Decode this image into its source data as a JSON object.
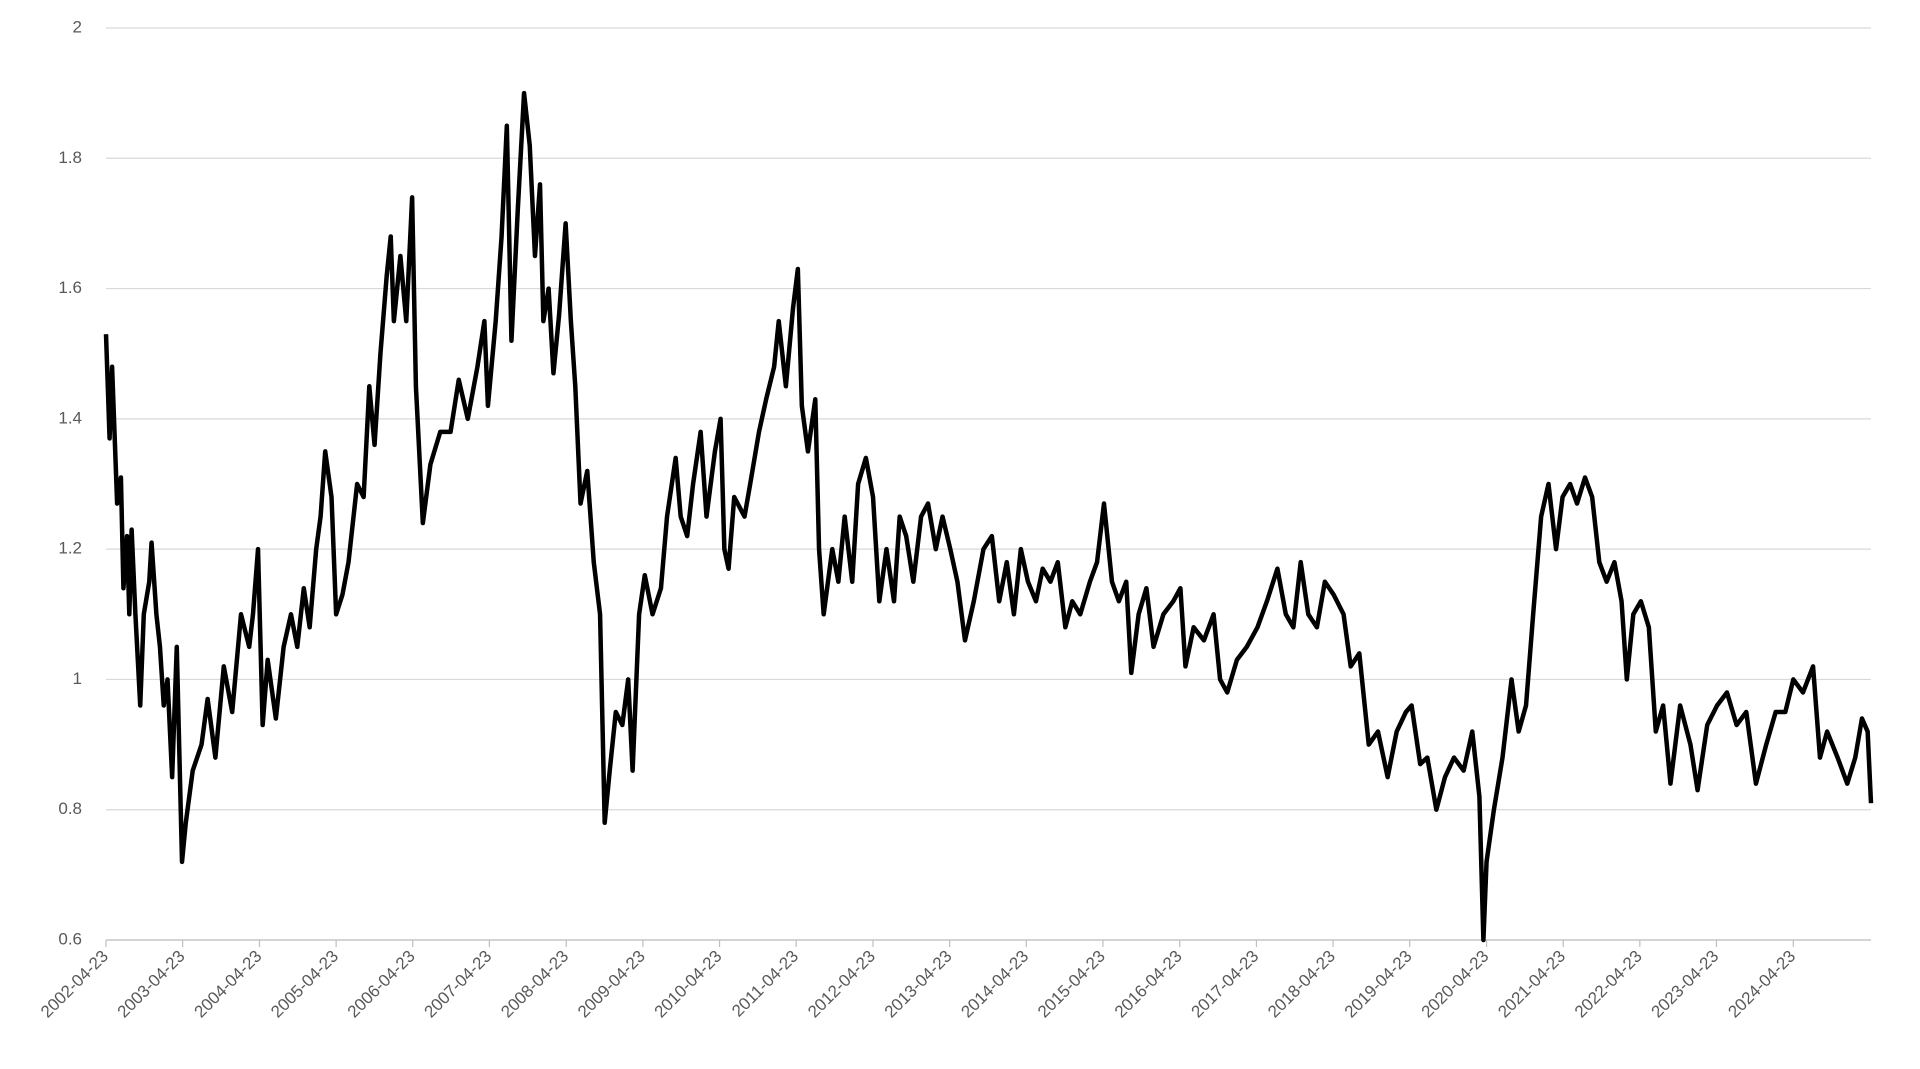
{
  "chart_data": {
    "type": "line",
    "color": "#000000",
    "grid": true,
    "x": [
      "2002-04-23",
      "2002-05-10",
      "2002-05-22",
      "2002-06-15",
      "2002-07-03",
      "2002-07-15",
      "2002-08-01",
      "2002-08-12",
      "2002-08-23",
      "2002-09-10",
      "2002-10-03",
      "2002-10-20",
      "2002-11-15",
      "2002-11-26",
      "2002-12-19",
      "2003-01-05",
      "2003-01-23",
      "2003-02-10",
      "2003-03-04",
      "2003-03-26",
      "2003-04-20",
      "2003-05-08",
      "2003-06-10",
      "2003-07-22",
      "2003-08-20",
      "2003-09-26",
      "2003-11-05",
      "2003-12-15",
      "2004-01-26",
      "2004-03-05",
      "2004-03-23",
      "2004-04-16",
      "2004-05-08",
      "2004-06-01",
      "2004-07-10",
      "2004-08-16",
      "2004-09-20",
      "2004-10-20",
      "2004-11-20",
      "2004-12-18",
      "2005-01-18",
      "2005-02-08",
      "2005-03-02",
      "2005-04-01",
      "2005-04-23",
      "2005-05-23",
      "2005-06-21",
      "2005-08-01",
      "2005-09-01",
      "2005-09-28",
      "2005-10-23",
      "2005-11-20",
      "2005-12-20",
      "2006-01-08",
      "2006-01-23",
      "2006-02-23",
      "2006-03-23",
      "2006-04-20",
      "2006-05-08",
      "2006-06-10",
      "2006-07-16",
      "2006-09-01",
      "2006-10-20",
      "2006-11-28",
      "2007-01-10",
      "2007-02-25",
      "2007-03-30",
      "2007-04-16",
      "2007-05-23",
      "2007-06-20",
      "2007-07-15",
      "2007-08-06",
      "2007-09-05",
      "2007-10-05",
      "2007-11-01",
      "2007-11-26",
      "2007-12-20",
      "2008-01-05",
      "2008-01-30",
      "2008-02-22",
      "2008-03-20",
      "2008-04-20",
      "2008-05-15",
      "2008-06-05",
      "2008-06-30",
      "2008-08-01",
      "2008-09-01",
      "2008-10-01",
      "2008-10-23",
      "2008-11-16",
      "2008-12-15",
      "2009-01-15",
      "2009-02-12",
      "2009-03-05",
      "2009-04-05",
      "2009-05-02",
      "2009-06-08",
      "2009-07-18",
      "2009-08-16",
      "2009-09-26",
      "2009-10-20",
      "2009-11-20",
      "2009-12-18",
      "2010-01-23",
      "2010-02-20",
      "2010-04-01",
      "2010-04-28",
      "2010-05-16",
      "2010-06-05",
      "2010-07-02",
      "2010-08-20",
      "2010-09-16",
      "2010-10-28",
      "2010-12-01",
      "2011-01-08",
      "2011-01-30",
      "2011-03-05",
      "2011-04-08",
      "2011-05-01",
      "2011-05-20",
      "2011-06-18",
      "2011-07-23",
      "2011-08-10",
      "2011-09-01",
      "2011-10-12",
      "2011-11-10",
      "2011-12-10",
      "2012-01-15",
      "2012-02-12",
      "2012-03-20",
      "2012-04-23",
      "2012-05-23",
      "2012-06-26",
      "2012-08-01",
      "2012-08-28",
      "2012-09-28",
      "2012-11-01",
      "2012-12-08",
      "2013-01-10",
      "2013-02-16",
      "2013-03-20",
      "2013-04-26",
      "2013-05-30",
      "2013-07-05",
      "2013-08-16",
      "2013-10-01",
      "2013-11-10",
      "2013-12-15",
      "2014-01-20",
      "2014-02-23",
      "2014-03-28",
      "2014-05-01",
      "2014-06-08",
      "2014-07-10",
      "2014-08-16",
      "2014-09-20",
      "2014-10-26",
      "2014-11-28",
      "2015-01-05",
      "2015-02-20",
      "2015-03-26",
      "2015-04-28",
      "2015-06-05",
      "2015-07-08",
      "2015-08-12",
      "2015-09-05",
      "2015-10-10",
      "2015-11-16",
      "2015-12-20",
      "2016-02-05",
      "2016-03-23",
      "2016-04-26",
      "2016-05-20",
      "2016-06-28",
      "2016-08-16",
      "2016-10-01",
      "2016-11-01",
      "2016-12-05",
      "2017-01-20",
      "2017-03-08",
      "2017-04-28",
      "2017-06-12",
      "2017-08-01",
      "2017-09-10",
      "2017-10-16",
      "2017-11-20",
      "2017-12-26",
      "2018-02-05",
      "2018-03-15",
      "2018-04-26",
      "2018-06-12",
      "2018-07-16",
      "2018-08-26",
      "2018-10-10",
      "2018-11-23",
      "2019-01-08",
      "2019-02-20",
      "2019-04-05",
      "2019-05-02",
      "2019-06-12",
      "2019-07-16",
      "2019-08-28",
      "2019-10-08",
      "2019-11-20",
      "2020-01-05",
      "2020-02-15",
      "2020-03-20",
      "2020-04-08",
      "2020-04-23",
      "2020-05-28",
      "2020-07-08",
      "2020-08-20",
      "2020-09-23",
      "2020-10-28",
      "2020-12-01",
      "2021-01-08",
      "2021-02-12",
      "2021-03-20",
      "2021-04-20",
      "2021-05-26",
      "2021-06-28",
      "2021-08-05",
      "2021-09-08",
      "2021-10-12",
      "2021-11-16",
      "2021-12-23",
      "2022-01-26",
      "2022-02-20",
      "2022-03-23",
      "2022-04-28",
      "2022-06-05",
      "2022-07-08",
      "2022-08-12",
      "2022-09-16",
      "2022-11-01",
      "2022-12-20",
      "2023-01-23",
      "2023-03-10",
      "2023-04-26",
      "2023-06-12",
      "2023-07-28",
      "2023-09-12",
      "2023-10-28",
      "2023-12-16",
      "2024-01-30",
      "2024-03-16",
      "2024-04-23",
      "2024-06-08",
      "2024-07-26",
      "2024-08-28",
      "2024-10-01",
      "2024-11-20",
      "2025-01-05",
      "2025-02-12",
      "2025-03-16",
      "2025-04-12",
      "2025-04-28"
    ],
    "values": [
      1.53,
      1.37,
      1.48,
      1.27,
      1.31,
      1.14,
      1.22,
      1.1,
      1.23,
      1.1,
      0.96,
      1.1,
      1.15,
      1.21,
      1.1,
      1.05,
      0.96,
      1.0,
      0.85,
      1.05,
      0.72,
      0.78,
      0.86,
      0.9,
      0.97,
      0.88,
      1.02,
      0.95,
      1.1,
      1.05,
      1.1,
      1.2,
      0.93,
      1.03,
      0.94,
      1.05,
      1.1,
      1.05,
      1.14,
      1.08,
      1.2,
      1.25,
      1.35,
      1.28,
      1.1,
      1.13,
      1.18,
      1.3,
      1.28,
      1.45,
      1.36,
      1.5,
      1.62,
      1.68,
      1.55,
      1.65,
      1.55,
      1.74,
      1.45,
      1.24,
      1.33,
      1.38,
      1.38,
      1.46,
      1.4,
      1.48,
      1.55,
      1.42,
      1.55,
      1.68,
      1.85,
      1.52,
      1.72,
      1.9,
      1.82,
      1.65,
      1.76,
      1.55,
      1.6,
      1.47,
      1.56,
      1.7,
      1.55,
      1.45,
      1.27,
      1.32,
      1.18,
      1.1,
      0.78,
      0.86,
      0.95,
      0.93,
      1.0,
      0.86,
      1.1,
      1.16,
      1.1,
      1.14,
      1.25,
      1.34,
      1.25,
      1.22,
      1.3,
      1.38,
      1.25,
      1.35,
      1.4,
      1.2,
      1.17,
      1.28,
      1.25,
      1.3,
      1.38,
      1.43,
      1.48,
      1.55,
      1.45,
      1.57,
      1.63,
      1.42,
      1.35,
      1.43,
      1.2,
      1.1,
      1.2,
      1.15,
      1.25,
      1.15,
      1.3,
      1.34,
      1.28,
      1.12,
      1.2,
      1.12,
      1.25,
      1.22,
      1.15,
      1.25,
      1.27,
      1.2,
      1.25,
      1.2,
      1.15,
      1.06,
      1.12,
      1.2,
      1.22,
      1.12,
      1.18,
      1.1,
      1.2,
      1.15,
      1.12,
      1.17,
      1.15,
      1.18,
      1.08,
      1.12,
      1.1,
      1.15,
      1.18,
      1.27,
      1.15,
      1.12,
      1.15,
      1.01,
      1.1,
      1.14,
      1.05,
      1.1,
      1.12,
      1.14,
      1.02,
      1.08,
      1.06,
      1.1,
      1.0,
      0.98,
      1.03,
      1.05,
      1.08,
      1.12,
      1.17,
      1.1,
      1.08,
      1.18,
      1.1,
      1.08,
      1.15,
      1.13,
      1.1,
      1.02,
      1.04,
      0.9,
      0.92,
      0.85,
      0.92,
      0.95,
      0.96,
      0.87,
      0.88,
      0.8,
      0.85,
      0.88,
      0.86,
      0.92,
      0.82,
      0.6,
      0.72,
      0.8,
      0.88,
      1.0,
      0.92,
      0.96,
      1.1,
      1.25,
      1.3,
      1.2,
      1.28,
      1.3,
      1.27,
      1.31,
      1.28,
      1.18,
      1.15,
      1.18,
      1.12,
      1.0,
      1.1,
      1.12,
      1.08,
      0.92,
      0.96,
      0.84,
      0.96,
      0.9,
      0.83,
      0.93,
      0.96,
      0.98,
      0.93,
      0.95,
      0.84,
      0.9,
      0.95,
      0.95,
      1.0,
      0.98,
      1.02,
      0.88,
      0.92,
      0.88,
      0.84,
      0.88,
      0.94,
      0.92,
      0.81
    ],
    "xlim": [
      "2002-04-23",
      "2025-04-28"
    ],
    "xticks": [
      "2002-04-23",
      "2003-04-23",
      "2004-04-23",
      "2005-04-23",
      "2006-04-23",
      "2007-04-23",
      "2008-04-23",
      "2009-04-23",
      "2010-04-23",
      "2011-04-23",
      "2012-04-23",
      "2013-04-23",
      "2014-04-23",
      "2015-04-23",
      "2016-04-23",
      "2017-04-23",
      "2018-04-23",
      "2019-04-23",
      "2020-04-23",
      "2021-04-23",
      "2022-04-23",
      "2023-04-23",
      "2024-04-23"
    ],
    "ylim": [
      0.6,
      2
    ],
    "yticks": [
      0.6,
      0.8,
      1,
      1.2,
      1.4,
      1.6,
      1.8,
      2
    ]
  }
}
